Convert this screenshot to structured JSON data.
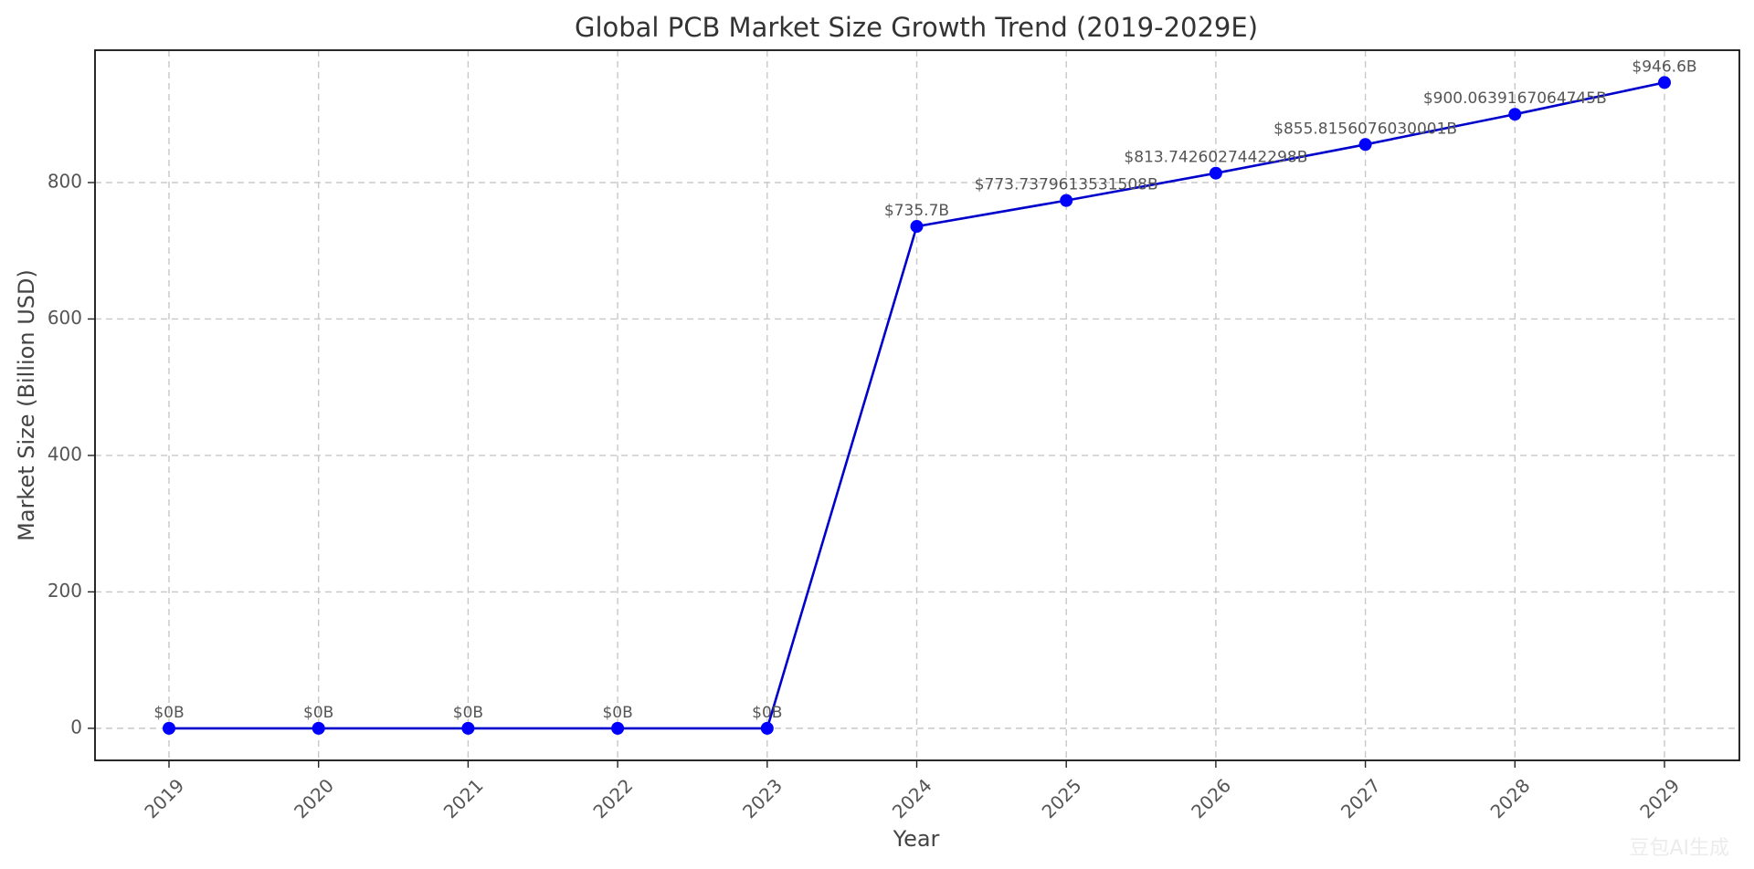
{
  "chart_data": {
    "type": "line",
    "title": "Global PCB Market Size Growth Trend (2019-2029E)",
    "xlabel": "Year",
    "ylabel": "Market Size (Billion USD)",
    "categories": [
      "2019",
      "2020",
      "2021",
      "2022",
      "2023",
      "2024",
      "2025",
      "2026",
      "2027",
      "2028",
      "2029"
    ],
    "series": [
      {
        "color": "#0000ff",
        "line_color": "#0000cc",
        "marker": "circle",
        "values": [
          0,
          0,
          0,
          0,
          0,
          735.7,
          773.7379613531508,
          813.7426027442298,
          855.8156076030001,
          900.0639167064745,
          946.6
        ]
      }
    ],
    "data_labels": [
      "$0B",
      "$0B",
      "$0B",
      "$0B",
      "$0B",
      "$735.7B",
      "$773.7379613531508B",
      "$813.7426027442298B",
      "$855.8156076030001B",
      "$900.0639167064745B",
      "$946.6B"
    ],
    "yticks": [
      0,
      200,
      400,
      600,
      800
    ],
    "ylim": [
      -47,
      994
    ],
    "grid": true,
    "xtick_rotation": "45 degrees, right-aligned"
  },
  "watermark": {
    "text": "豆包AI生成"
  }
}
